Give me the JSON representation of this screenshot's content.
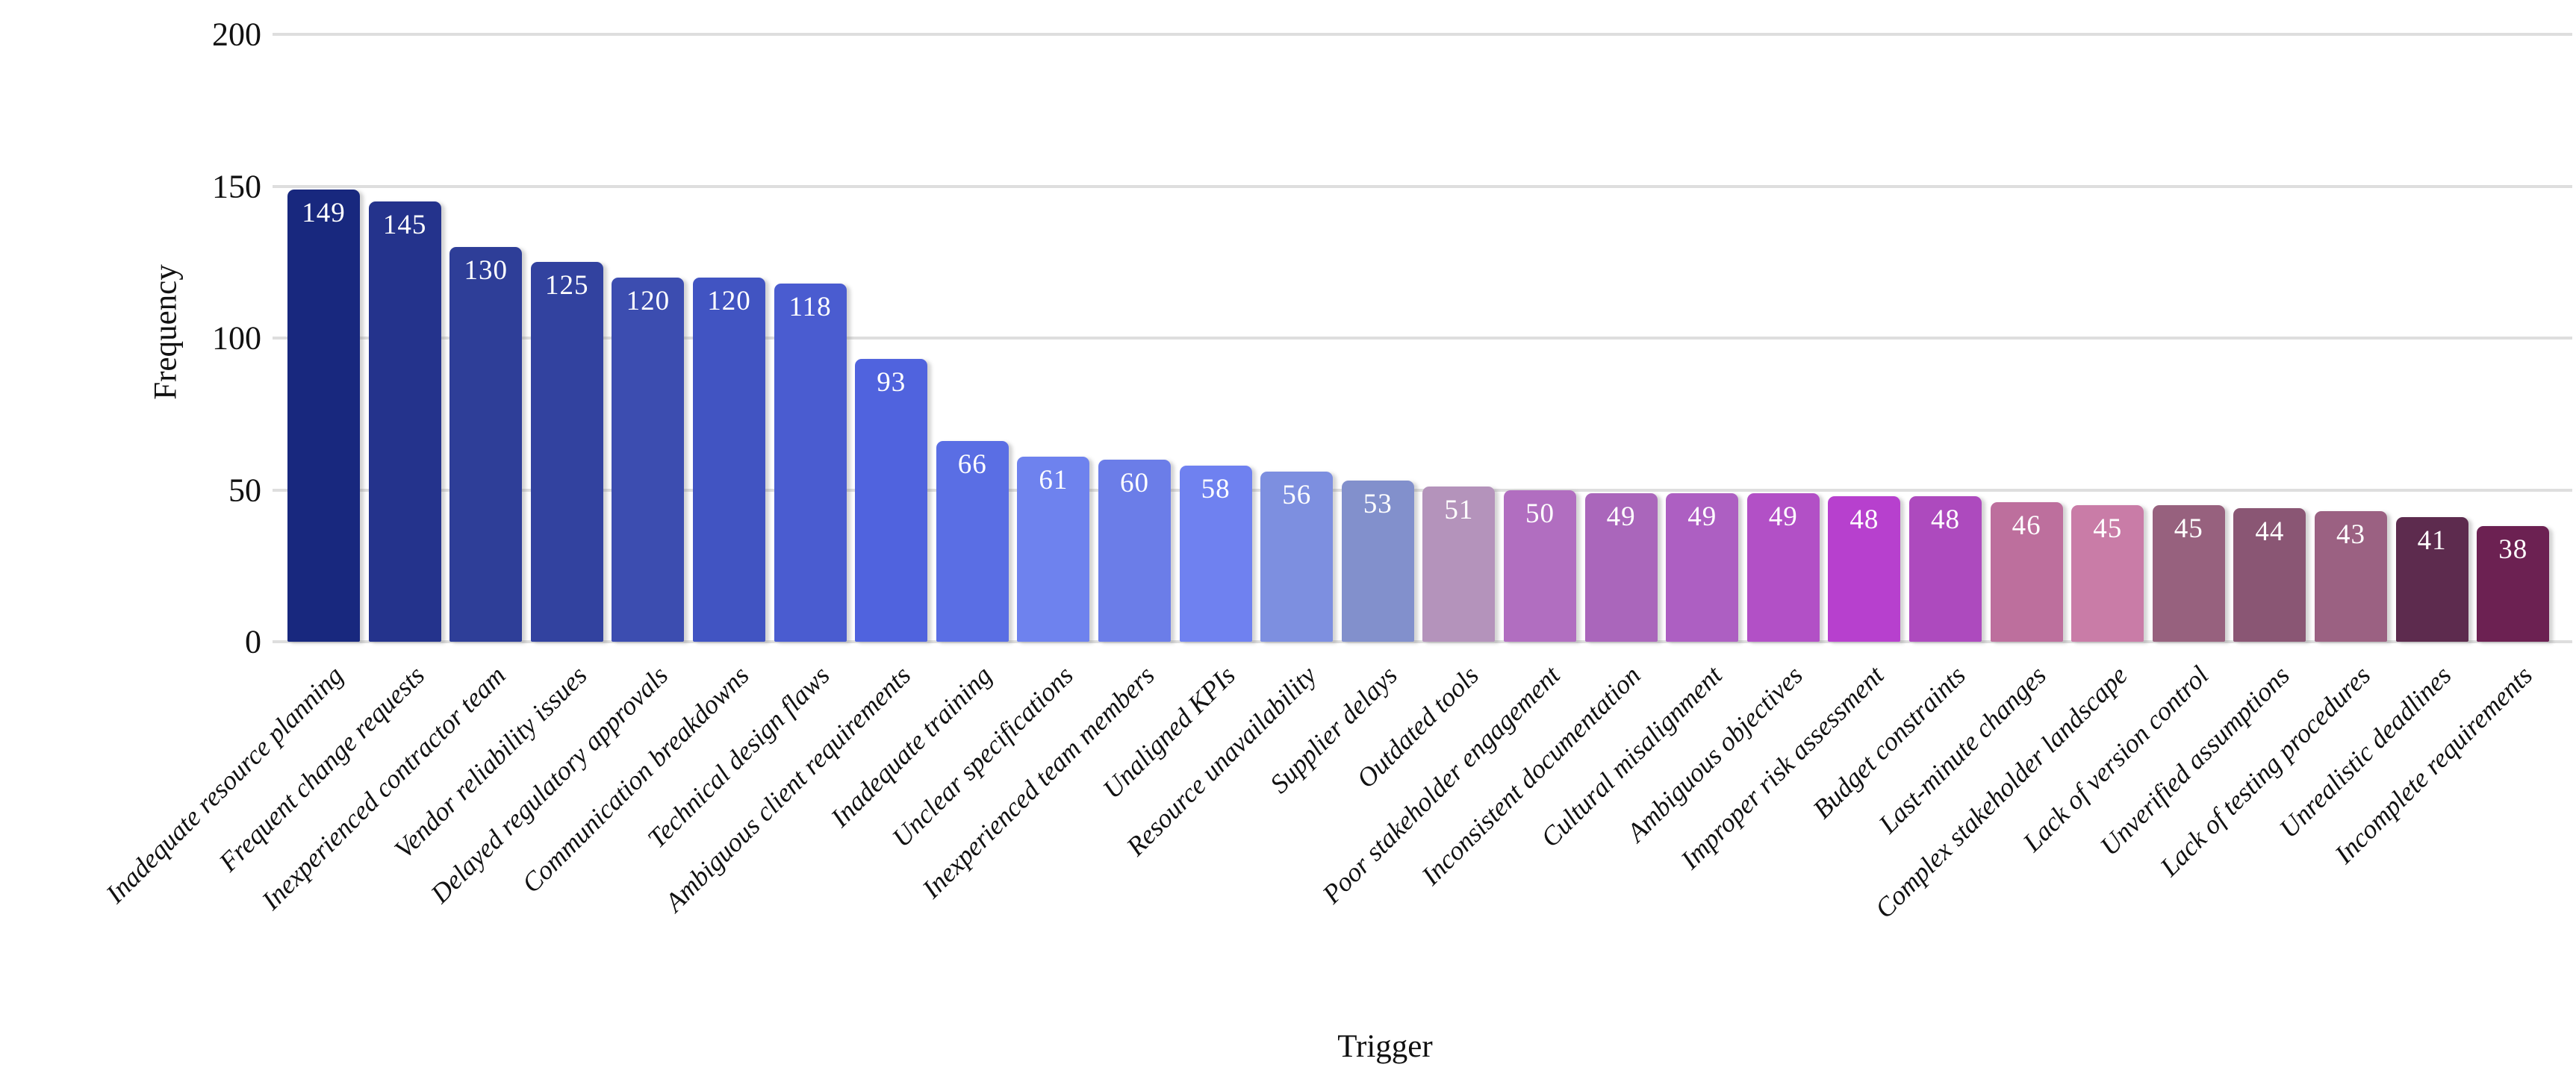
{
  "chart_data": {
    "type": "bar",
    "title": "",
    "xlabel": "Trigger",
    "ylabel": "Frequency",
    "ylim": [
      0,
      200
    ],
    "yticks": [
      0,
      50,
      100,
      150,
      200
    ],
    "grid": true,
    "legend": false,
    "value_label_position": "inside-top",
    "bar_label_color": "#ffffff",
    "categories": [
      "Inadequate resource planning",
      "Frequent change requests",
      "Inexperienced contractor team",
      "Vendor reliability issues",
      "Delayed regulatory approvals",
      "Communication breakdowns",
      "Technical design flaws",
      "Ambiguous client requirements",
      "Inadequate training",
      "Unclear specifications",
      "Inexperienced team members",
      "Unaligned KPIs",
      "Resource unavailability",
      "Supplier delays",
      "Outdated tools",
      "Poor stakeholder engagement",
      "Inconsistent documentation",
      "Cultural misalignment",
      "Ambiguous objectives",
      "Improper risk assessment",
      "Budget constraints",
      "Last-minute changes",
      "Complex stakeholder landscape",
      "Lack of version control",
      "Unverified assumptions",
      "Lack of testing procedures",
      "Unrealistic deadlines",
      "Incomplete requirements"
    ],
    "values": [
      149,
      145,
      130,
      125,
      120,
      120,
      118,
      93,
      66,
      61,
      60,
      58,
      56,
      53,
      51,
      50,
      49,
      49,
      49,
      48,
      48,
      46,
      45,
      45,
      44,
      43,
      41,
      38
    ],
    "bar_colors": [
      "#18287e",
      "#24338c",
      "#2e3e98",
      "#32429f",
      "#3c4db0",
      "#4154c2",
      "#4a5cd0",
      "#5063de",
      "#5a6ee4",
      "#6e82ee",
      "#6b7de8",
      "#6f81f0",
      "#7d8fe0",
      "#8290cc",
      "#b493bb",
      "#b16ec0",
      "#aa66bb",
      "#ad5fc2",
      "#b250c6",
      "#b740ce",
      "#ad4abe",
      "#bd6f9d",
      "#c97ca7",
      "#97617e",
      "#8a5674",
      "#9b6182",
      "#5d2b4e",
      "#6c2152"
    ]
  },
  "colors": {
    "background": "#ffffff",
    "gridline": "#dedede",
    "axis_text": "#111111",
    "value_label": "#ffffff"
  }
}
